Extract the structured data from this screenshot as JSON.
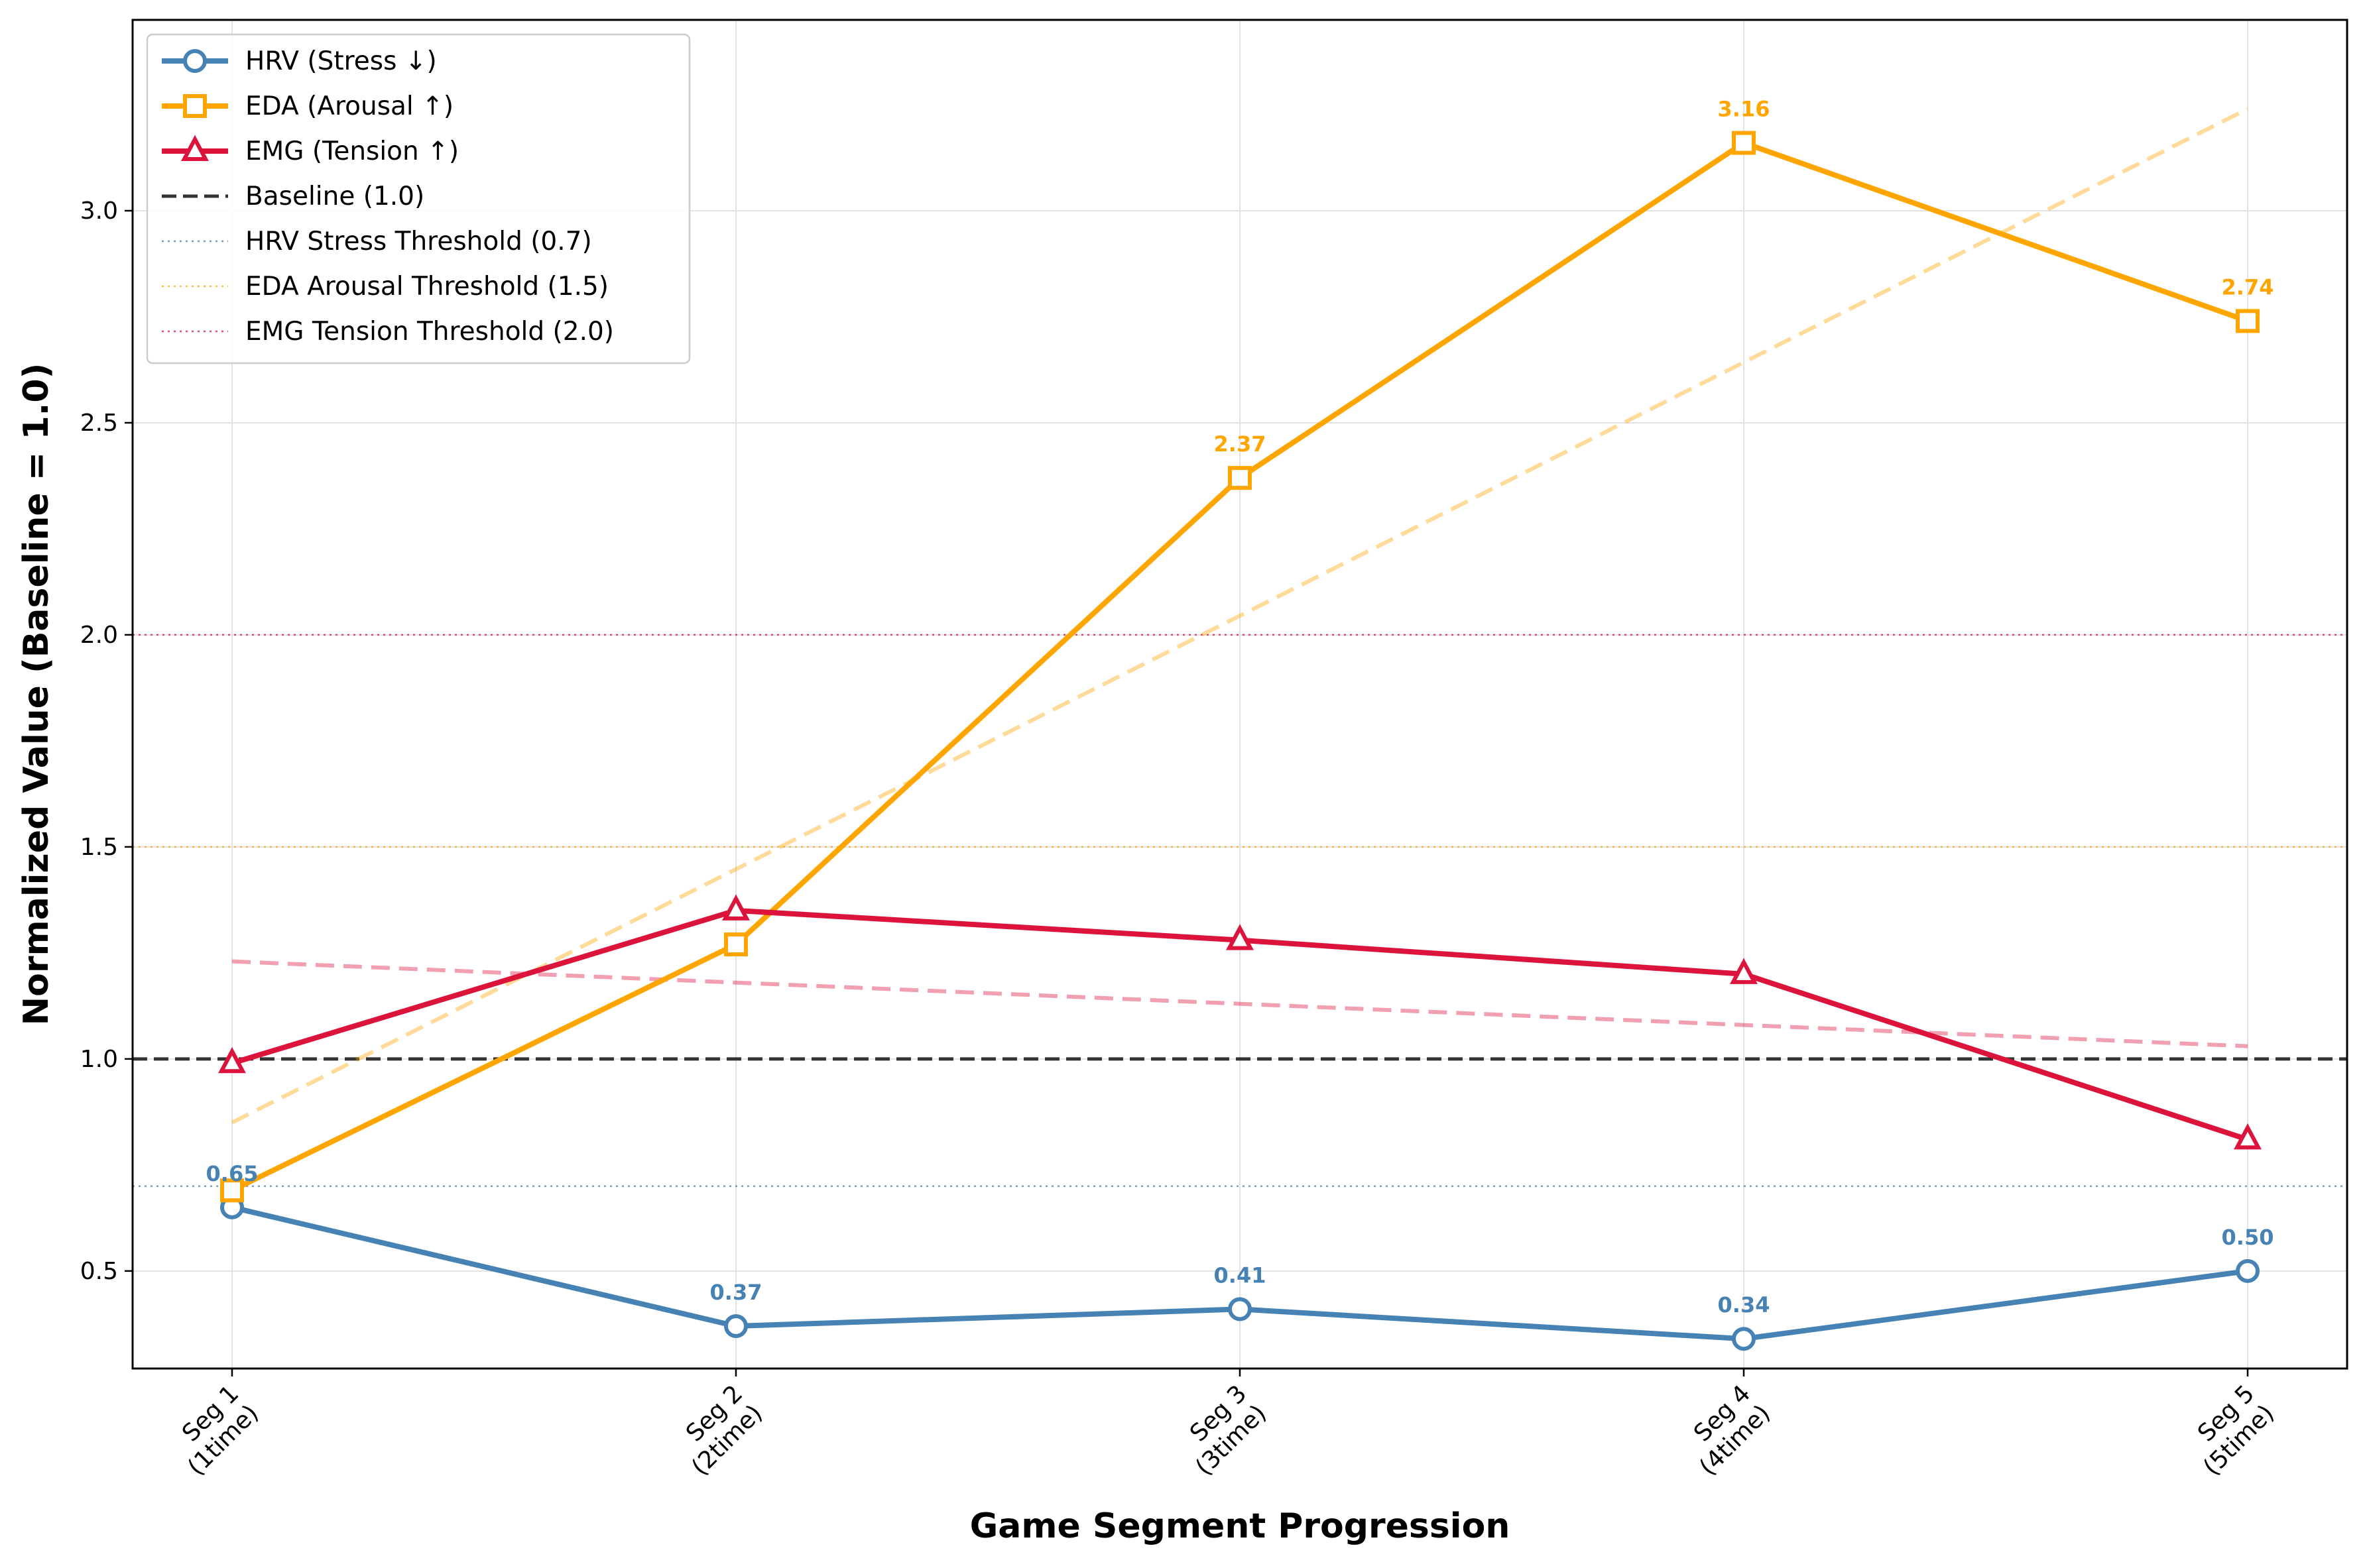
{
  "chart_data": {
    "type": "line",
    "xlabel": "Game Segment Progression",
    "ylabel": "Normalized Value (Baseline = 1.0)",
    "categories": [
      "Seg 1\n(1time)",
      "Seg 2\n(2time)",
      "Seg 3\n(3time)",
      "Seg 4\n(4time)",
      "Seg 5\n(5time)"
    ],
    "ylim": [
      0.27,
      3.45
    ],
    "yticks": [
      0.5,
      1.0,
      1.5,
      2.0,
      2.5,
      3.0
    ],
    "ytick_labels": [
      "0.5",
      "1.0",
      "1.5",
      "2.0",
      "2.5",
      "3.0"
    ],
    "grid": true,
    "legend_position": "top-left",
    "series": [
      {
        "name": "HRV (Stress ↓)",
        "color": "#4682b4",
        "marker": "circle",
        "values": [
          0.65,
          0.37,
          0.41,
          0.34,
          0.5
        ],
        "labels": [
          "0.65",
          "0.37",
          "0.41",
          "0.34",
          "0.50"
        ]
      },
      {
        "name": "EDA (Arousal ↑)",
        "color": "#ffa500",
        "marker": "square",
        "values": [
          0.69,
          1.27,
          2.37,
          3.16,
          2.74
        ],
        "labels": [
          "",
          "",
          "2.37",
          "3.16",
          "2.74"
        ]
      },
      {
        "name": "EMG (Tension ↑)",
        "color": "#dc143c",
        "marker": "triangle",
        "values": [
          0.99,
          1.35,
          1.28,
          1.2,
          0.81
        ],
        "labels": [
          "",
          "",
          "",
          "",
          ""
        ]
      }
    ],
    "trendlines": [
      {
        "color": "#ffa500",
        "start": 0.85,
        "end": 3.24
      },
      {
        "color": "#dc143c",
        "start": 1.23,
        "end": 1.03
      }
    ],
    "reference_lines": [
      {
        "name": "Baseline (1.0)",
        "value": 1.0,
        "color": "#333333",
        "style": "dashed"
      },
      {
        "name": "HRV Stress Threshold (0.7)",
        "value": 0.7,
        "color": "#4682b4",
        "style": "dotted"
      },
      {
        "name": "EDA Arousal Threshold (1.5)",
        "value": 1.5,
        "color": "#ffa500",
        "style": "dotted"
      },
      {
        "name": "EMG Tension Threshold (2.0)",
        "value": 2.0,
        "color": "#dc143c",
        "style": "dotted"
      }
    ]
  }
}
